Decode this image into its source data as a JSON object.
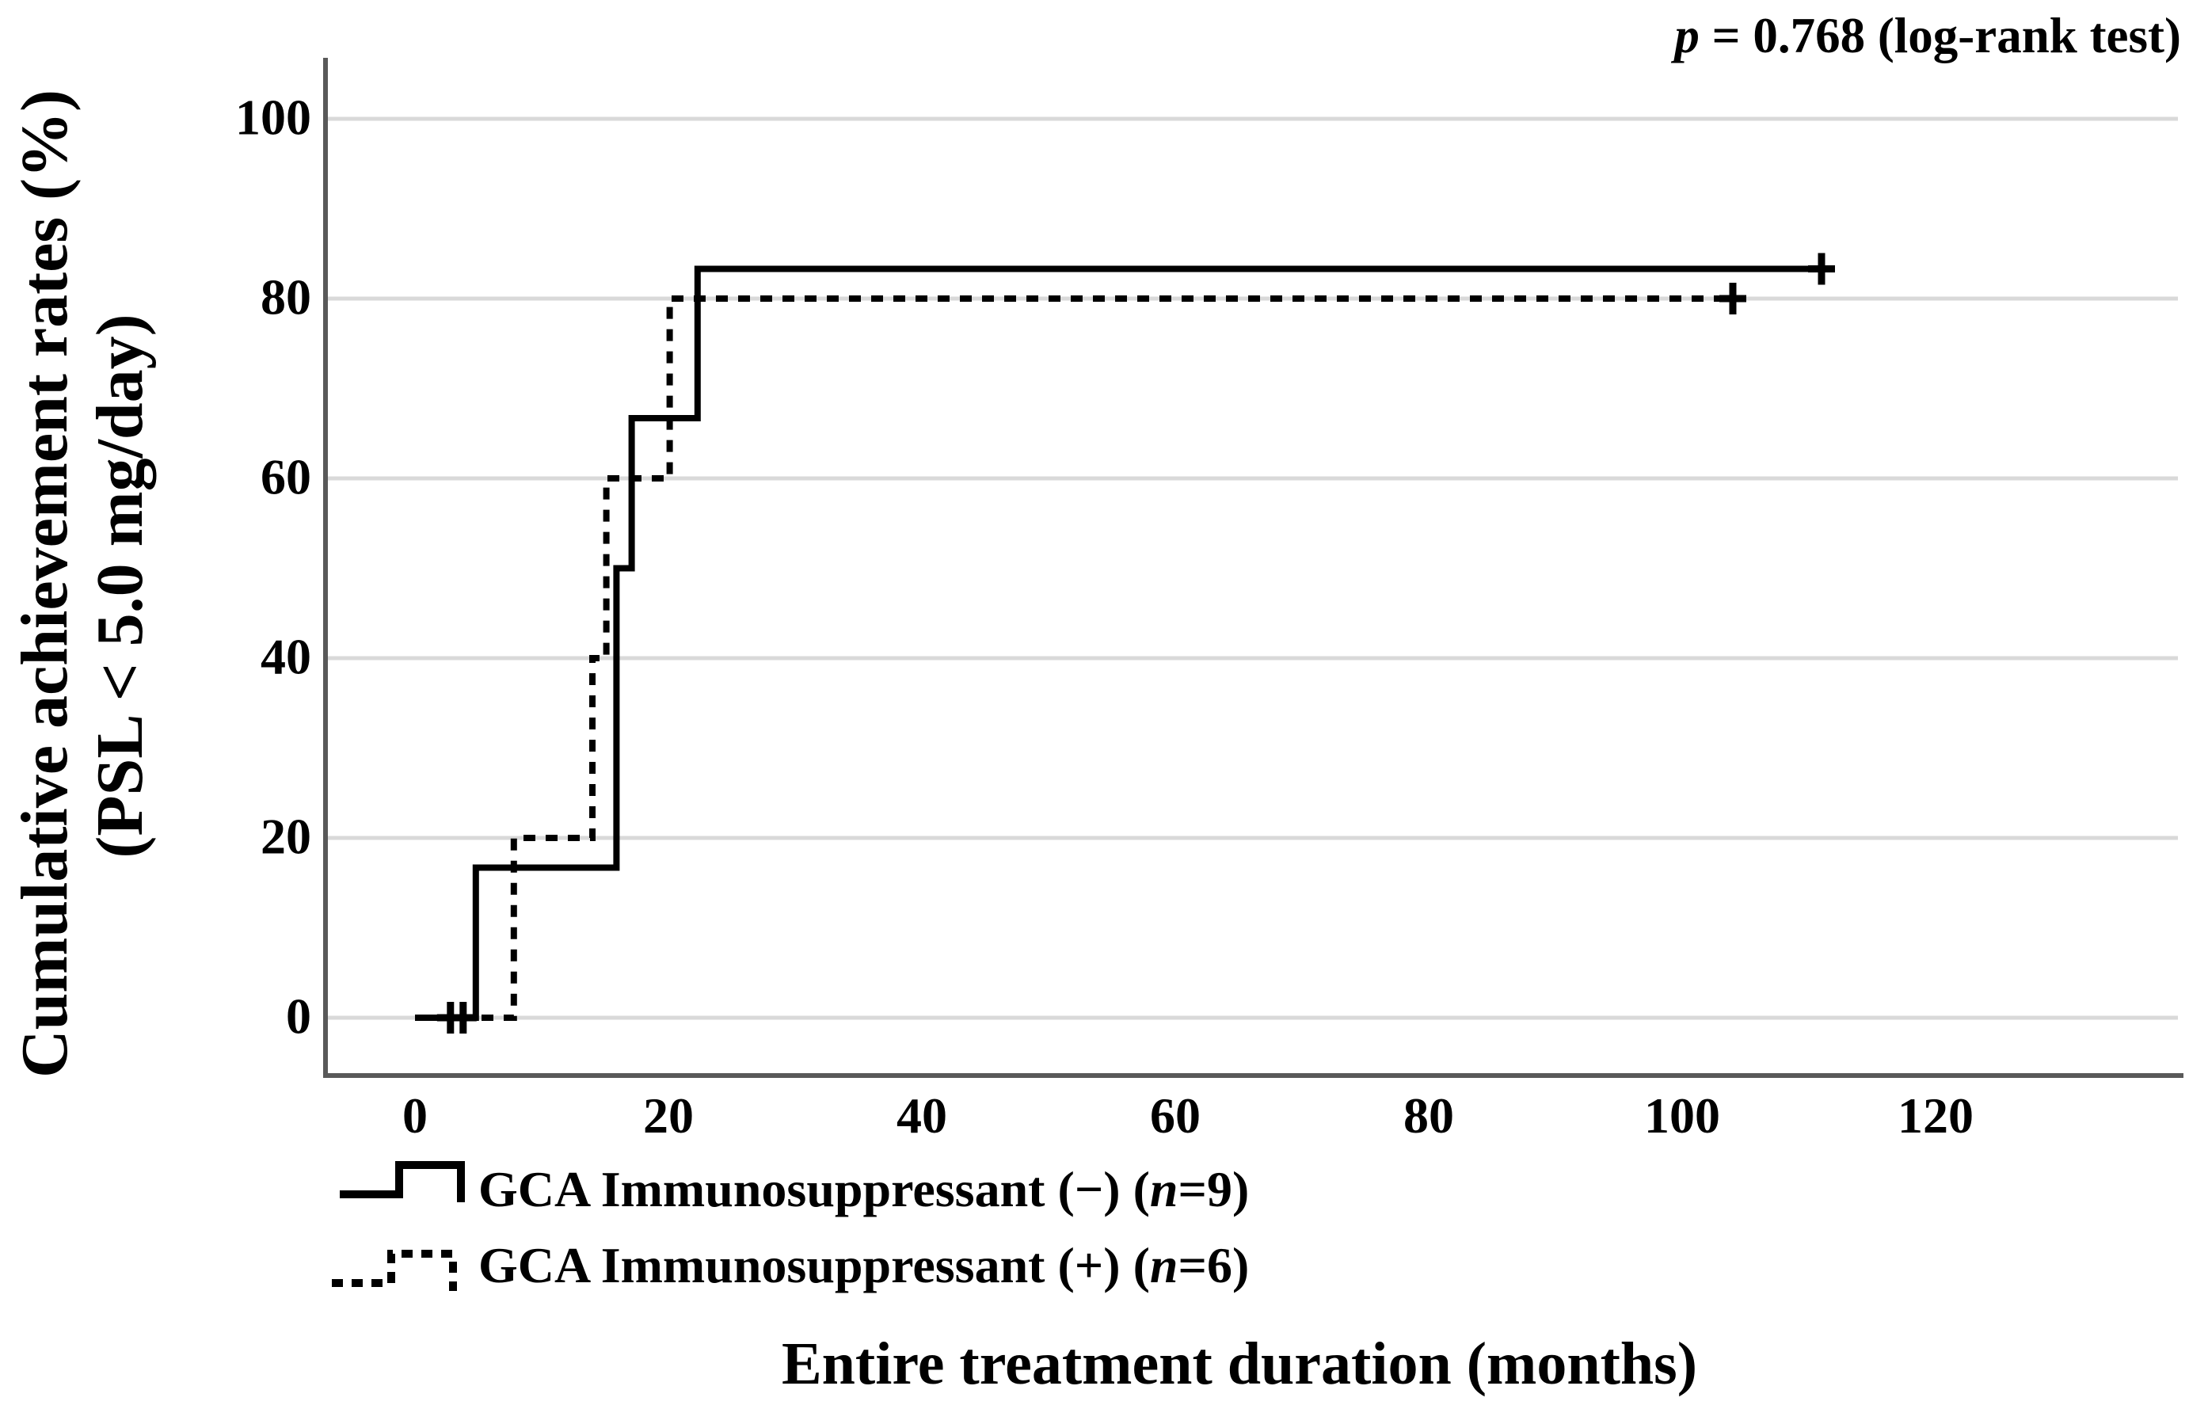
{
  "annotation": {
    "p_italic": "p",
    "p_rest": " = 0.768 (log-rank test)"
  },
  "y_axis": {
    "title_line1": "Cumulative achievement rates (%)",
    "title_line2": "(PSL < 5.0 mg/day)",
    "ticks": [
      "100",
      "80",
      "60",
      "40",
      "20",
      "0"
    ]
  },
  "x_axis": {
    "title": "Entire treatment duration (months)",
    "ticks": [
      "0",
      "20",
      "40",
      "60",
      "80",
      "100",
      "120"
    ]
  },
  "legend": {
    "items": [
      {
        "key_style": "solid-step-line",
        "prefix": "GCA Immunosuppressant (−) (",
        "n": "n",
        "suffix": "=9)"
      },
      {
        "key_style": "dashed-step-line",
        "prefix": "GCA Immunosuppressant (+) (",
        "n": "n",
        "suffix": "=6)"
      }
    ]
  },
  "chart_data": {
    "type": "line",
    "subtype": "kaplan_meier_step",
    "title": "",
    "xlabel": "Entire treatment duration (months)",
    "ylabel_line1": "Cumulative achievement rates (%)",
    "ylabel_line2": "(PSL < 5.0 mg/day)",
    "xlim": [
      0,
      139
    ],
    "ylim": [
      0,
      107
    ],
    "x_ticks": [
      0,
      20,
      40,
      60,
      80,
      100,
      120
    ],
    "y_ticks": [
      0,
      20,
      40,
      60,
      80,
      100
    ],
    "grid": true,
    "legend_position": "bottom-left",
    "annotation_text": "p = 0.768 (log-rank test)",
    "colors": {
      "axis": "#595959",
      "grid": "#d9d9d9",
      "curve": "#000000"
    },
    "series": [
      {
        "name": "GCA Immunosuppressant (−) (n=9)",
        "line_style": "solid",
        "color": "#000000",
        "steps_x_months_y_percent": [
          [
            0,
            0
          ],
          [
            4.8,
            16.7
          ],
          [
            15.9,
            50.0
          ],
          [
            17.1,
            66.7
          ],
          [
            22.3,
            83.3
          ]
        ],
        "end_month": 111,
        "censor_marks": [
          [
            2.8,
            0
          ],
          [
            3.8,
            0
          ],
          [
            111,
            83.3
          ]
        ]
      },
      {
        "name": "GCA Immunosuppressant (+) (n=6)",
        "line_style": "dashed",
        "color": "#000000",
        "steps_x_months_y_percent": [
          [
            0,
            0
          ],
          [
            7.8,
            20
          ],
          [
            14.0,
            40
          ],
          [
            15.1,
            60
          ],
          [
            20.1,
            80
          ]
        ],
        "end_month": 104,
        "censor_marks": [
          [
            104,
            80
          ]
        ]
      }
    ]
  }
}
